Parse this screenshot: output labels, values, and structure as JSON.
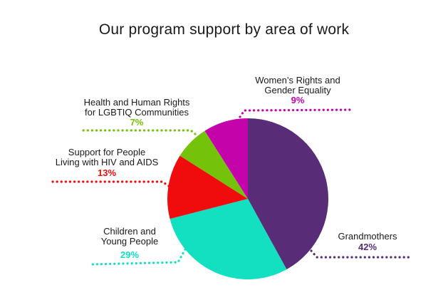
{
  "chart_data": {
    "type": "pie",
    "title": "Our program support by area of work",
    "slices": [
      {
        "label": [
          "Grandmothers"
        ],
        "pct_label": "42%",
        "value": 42,
        "color": "#582c77"
      },
      {
        "label": [
          "Children and",
          "Young People"
        ],
        "pct_label": "29%",
        "value": 29,
        "color": "#12e0c0"
      },
      {
        "label": [
          "Support for People",
          "Living with HIV and AIDS"
        ],
        "pct_label": "13%",
        "value": 13,
        "color": "#f00c0c"
      },
      {
        "label": [
          "Health and Human Rights",
          "for LGBTIQ Communities"
        ],
        "pct_label": "7%",
        "value": 7,
        "color": "#74c20a"
      },
      {
        "label": [
          "Women’s Rights and",
          "Gender Equality"
        ],
        "pct_label": "9%",
        "value": 9,
        "color": "#c503ab"
      }
    ]
  }
}
